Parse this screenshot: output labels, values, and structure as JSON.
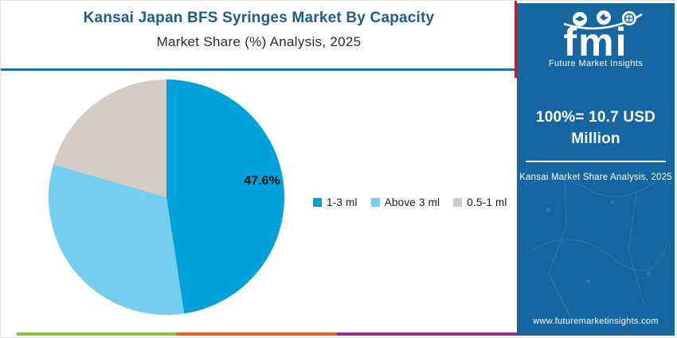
{
  "header": {
    "title": "Kansai Japan BFS Syringes Market By Capacity",
    "subtitle": "Market Share (%) Analysis, 2025",
    "title_color": "#1E5C8F",
    "rule_color": "#1B74B8",
    "red_accent_color": "#B32431"
  },
  "chart_data": {
    "type": "pie",
    "title": "Kansai Japan BFS Syringes Market By Capacity — Market Share (%) Analysis, 2025",
    "labels": [
      "1-3 ml",
      "Above 3 ml",
      "0.5-1 ml"
    ],
    "values": [
      47.6,
      31.9,
      20.5
    ],
    "colors": [
      "#00A0DB",
      "#74CEF0",
      "#D4CBC3"
    ],
    "start_angle_deg": 0,
    "direction": "clockwise",
    "shown_label": {
      "slice": "1-3 ml",
      "text": "47.6%"
    },
    "legend_position": "right-middle",
    "total_annotation": "100%= 10.7 USD Million"
  },
  "sidebar": {
    "background": "#1566A1",
    "logo_text": "fmi",
    "logo_subtext": "Future Market Insights",
    "headline": "100%= 10.7 USD Million",
    "caption": "Kansai Market Share Analysis, 2025",
    "website": "www.futuremarketinsights.com"
  },
  "footer": {
    "bar_colors": [
      "#8CC341",
      "#E0612C",
      "#93328E"
    ]
  }
}
